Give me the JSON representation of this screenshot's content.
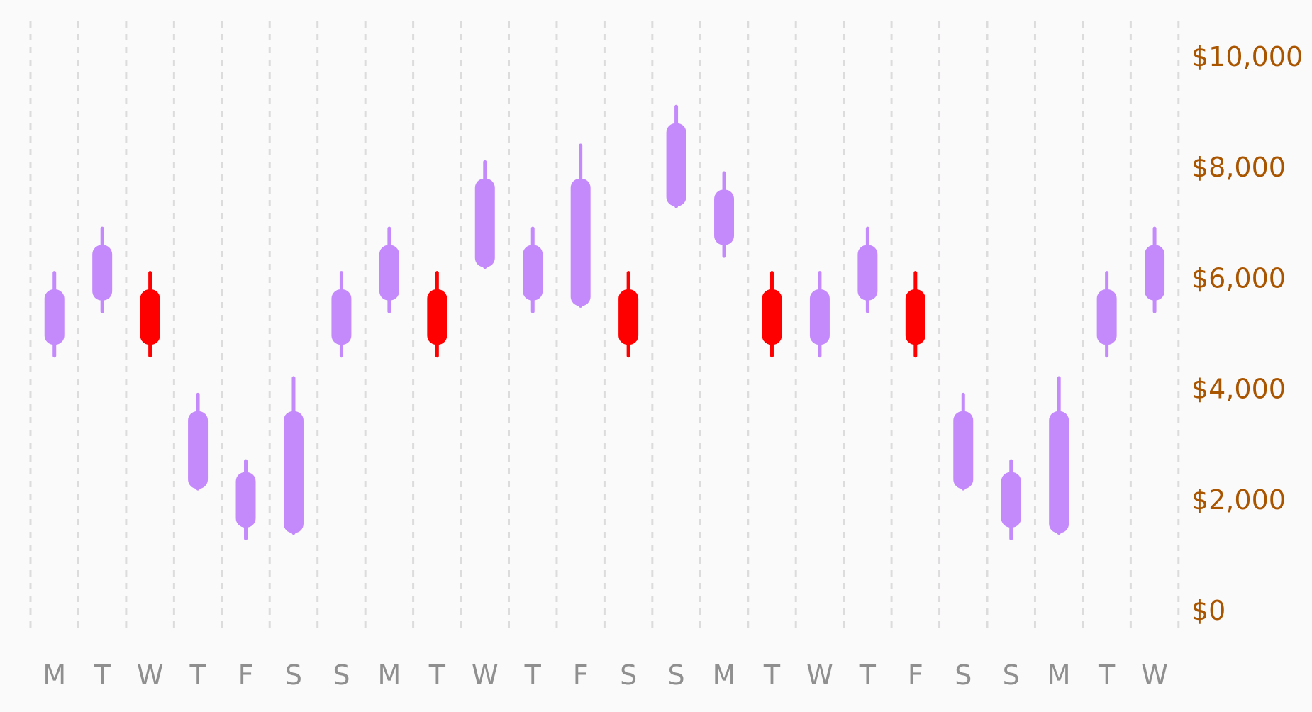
{
  "chart_data": {
    "type": "candlestick",
    "categories": [
      "M",
      "T",
      "W",
      "T",
      "F",
      "S",
      "S",
      "M",
      "T",
      "W",
      "T",
      "F",
      "S",
      "S",
      "M",
      "T",
      "W",
      "T",
      "F",
      "S",
      "S",
      "M",
      "T",
      "W"
    ],
    "series": [
      {
        "open": [
          4800,
          5600,
          5800,
          2200,
          1500,
          1400,
          4800,
          5600,
          5800,
          6200,
          5600,
          5500,
          5800,
          7300,
          6600,
          5800,
          4800,
          5600,
          5800,
          2200,
          1500,
          1400,
          4800,
          5600
        ],
        "close": [
          5800,
          6600,
          4800,
          3600,
          2500,
          3600,
          5800,
          6600,
          4800,
          7800,
          6600,
          7800,
          4800,
          8800,
          7600,
          4800,
          5800,
          6600,
          4800,
          3600,
          2500,
          3600,
          5800,
          6600
        ],
        "high": [
          6100,
          6900,
          6100,
          3900,
          2700,
          4200,
          6100,
          6900,
          6100,
          8100,
          6900,
          8400,
          6100,
          9100,
          7900,
          6100,
          6100,
          6900,
          6100,
          3900,
          2700,
          4200,
          6100,
          6900
        ],
        "low": [
          4600,
          5400,
          4600,
          2200,
          1300,
          1400,
          4600,
          5400,
          4600,
          6200,
          5400,
          5500,
          4600,
          7300,
          6400,
          4600,
          4600,
          5400,
          4600,
          2200,
          1300,
          1400,
          4600,
          5400
        ]
      }
    ],
    "yticks": [
      "$0",
      "$2,000",
      "$4,000",
      "$6,000",
      "$8,000",
      "$10,000"
    ],
    "ytick_values": [
      0,
      2000,
      4000,
      6000,
      8000,
      10000
    ],
    "ylim": [
      0,
      10000
    ],
    "ylabel": "",
    "xlabel": "",
    "title": "",
    "grid": "vertical-dashed",
    "y_axis_side": "right",
    "colors": {
      "up": "#c48afc",
      "down": "#ff0000",
      "ytick": "#a95500",
      "xtick": "#8f8f8f",
      "grid": "#dcdcdc",
      "background": "#fbfafb"
    }
  }
}
